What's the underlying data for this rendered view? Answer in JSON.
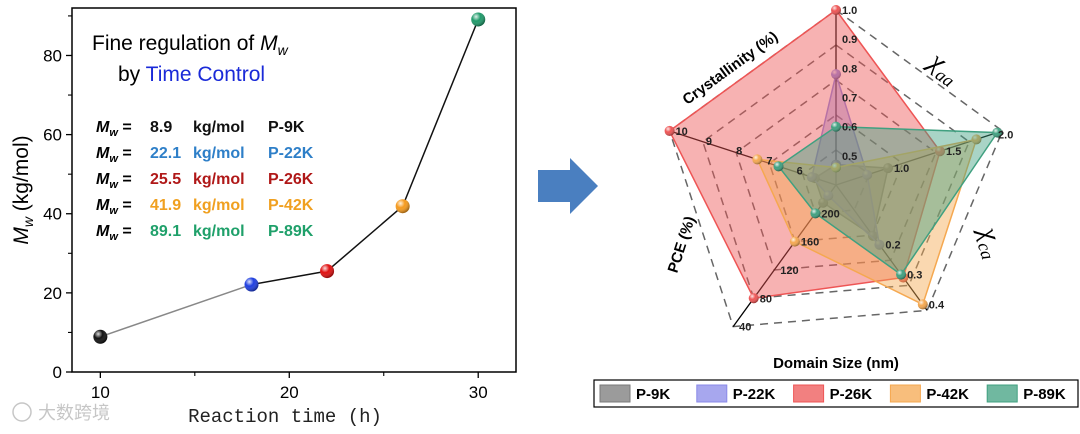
{
  "chart_data": [
    {
      "type": "line",
      "title": "Fine regulation of M_w",
      "title_parts": {
        "line1": "Fine regulation of ",
        "mw_symbol": "M",
        "mw_sub": "w",
        "by": "by ",
        "accent": "Time Control"
      },
      "xlabel": "Reaction time (h)",
      "ylabel_symbol": "M",
      "ylabel_sub": "w",
      "ylabel_unit": " (kg/mol)",
      "xlim": [
        8.5,
        32
      ],
      "ylim": [
        0,
        92
      ],
      "xticks": [
        10,
        20,
        30
      ],
      "yticks": [
        0,
        20,
        40,
        60,
        80
      ],
      "x": [
        10,
        18,
        22,
        26,
        30
      ],
      "y": [
        8.9,
        22.1,
        25.5,
        41.9,
        89.1
      ],
      "point_colors": [
        "#111111",
        "#1f3fe0",
        "#e01010",
        "#f59a1e",
        "#1f9a6a"
      ],
      "segment_colors": [
        "#888888",
        "#111111",
        "#111111",
        "#111111"
      ],
      "annotations": [
        {
          "symbol": "M",
          "sub": "w",
          "eq": " = ",
          "value": " 8.9",
          "unit": "kg/mol",
          "sample": "P-9K",
          "color": "#111111"
        },
        {
          "symbol": "M",
          "sub": "w",
          "eq": " = ",
          "value": "22.1",
          "unit": "kg/mol",
          "sample": "P-22K",
          "color": "#2e7fc8"
        },
        {
          "symbol": "M",
          "sub": "w",
          "eq": " = ",
          "value": "25.5",
          "unit": "kg/mol",
          "sample": "P-26K",
          "color": "#b01818"
        },
        {
          "symbol": "M",
          "sub": "w",
          "eq": " = ",
          "value": "41.9",
          "unit": "kg/mol",
          "sample": "P-42K",
          "color": "#f0a020"
        },
        {
          "symbol": "M",
          "sub": "w",
          "eq": " = ",
          "value": "89.1",
          "unit": "kg/mol",
          "sample": "P-89K",
          "color": "#1fa06a"
        }
      ],
      "grid": false
    },
    {
      "type": "radar",
      "axes": [
        {
          "label": "Crystallinity (%)",
          "ticks": [
            "0.5",
            "0.6",
            "0.7",
            "0.8",
            "0.9",
            "1.0"
          ],
          "range": [
            0.4,
            1.0
          ]
        },
        {
          "label_symbol": "χ",
          "label_sub": "aa",
          "ticks": [
            "1.0",
            "1.5",
            "2.0"
          ],
          "range": [
            0.5,
            2.1
          ]
        },
        {
          "label_symbol": "χ",
          "label_sub": "ca",
          "ticks": [
            "0.2",
            "0.3",
            "0.4"
          ],
          "range": [
            0.0,
            0.42
          ]
        },
        {
          "label": "Domain Size (nm)",
          "ticks": [
            "40",
            "80",
            "120",
            "160",
            "200"
          ],
          "range": [
            240,
            40
          ],
          "reversed": true
        },
        {
          "label": "PCE (%)",
          "ticks": [
            "6",
            "7",
            "8",
            "9",
            "10"
          ],
          "range": [
            4.5,
            10
          ]
        }
      ],
      "series": [
        {
          "name": "P-9K",
          "values": [
            0.47,
            1.0,
            0.17,
            215,
            5.2
          ],
          "color": "#7a7a7a"
        },
        {
          "name": "P-22K",
          "values": [
            0.78,
            0.8,
            0.2,
            225,
            5.3
          ],
          "color": "#8a8ae8"
        },
        {
          "name": "P-26K",
          "values": [
            1.0,
            1.5,
            0.31,
            80,
            10.0
          ],
          "color": "#ee5555"
        },
        {
          "name": "P-42K",
          "values": [
            0.46,
            1.85,
            0.4,
            160,
            7.1
          ],
          "color": "#f5a850"
        },
        {
          "name": "P-89K",
          "values": [
            0.6,
            2.05,
            0.3,
            200,
            6.4
          ],
          "color": "#40a080"
        }
      ],
      "legend": "bottom"
    }
  ],
  "watermark": "大数跨境"
}
